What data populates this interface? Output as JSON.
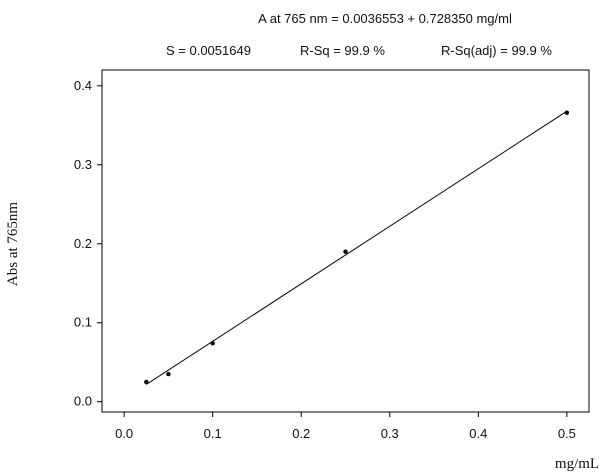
{
  "chart_data": {
    "type": "scatter",
    "title": "A at 765 nm = 0.0036553 + 0.728350 mg/ml",
    "subtitle": {
      "s": "S = 0.0051649",
      "rsq": "R-Sq =  99.9 %",
      "rsq_adj": "R-Sq(adj) =  99.9 %"
    },
    "xlabel": "mg/mL",
    "ylabel": "Abs at 765nm",
    "xlim": [
      -0.025,
      0.525
    ],
    "ylim": [
      -0.013,
      0.42
    ],
    "xticks": [
      0.0,
      0.1,
      0.2,
      0.3,
      0.4,
      0.5
    ],
    "xtick_labels": [
      "0.0",
      "0.1",
      "0.2",
      "0.3",
      "0.4",
      "0.5"
    ],
    "yticks": [
      0.0,
      0.1,
      0.2,
      0.3,
      0.4
    ],
    "ytick_labels": [
      "0.0",
      "0.1",
      "0.2",
      "0.3",
      "0.4"
    ],
    "grid": false,
    "series": [
      {
        "points": [
          {
            "x": 0.025,
            "y": 0.025
          },
          {
            "x": 0.05,
            "y": 0.035
          },
          {
            "x": 0.1,
            "y": 0.074
          },
          {
            "x": 0.25,
            "y": 0.19
          },
          {
            "x": 0.5,
            "y": 0.366
          }
        ]
      }
    ],
    "fit_line": {
      "intercept": 0.0036553,
      "slope": 0.72835,
      "x_range": [
        0.025,
        0.5
      ]
    },
    "colors": {
      "line": "#000000",
      "points": "#000000",
      "frame": "#000000"
    }
  }
}
